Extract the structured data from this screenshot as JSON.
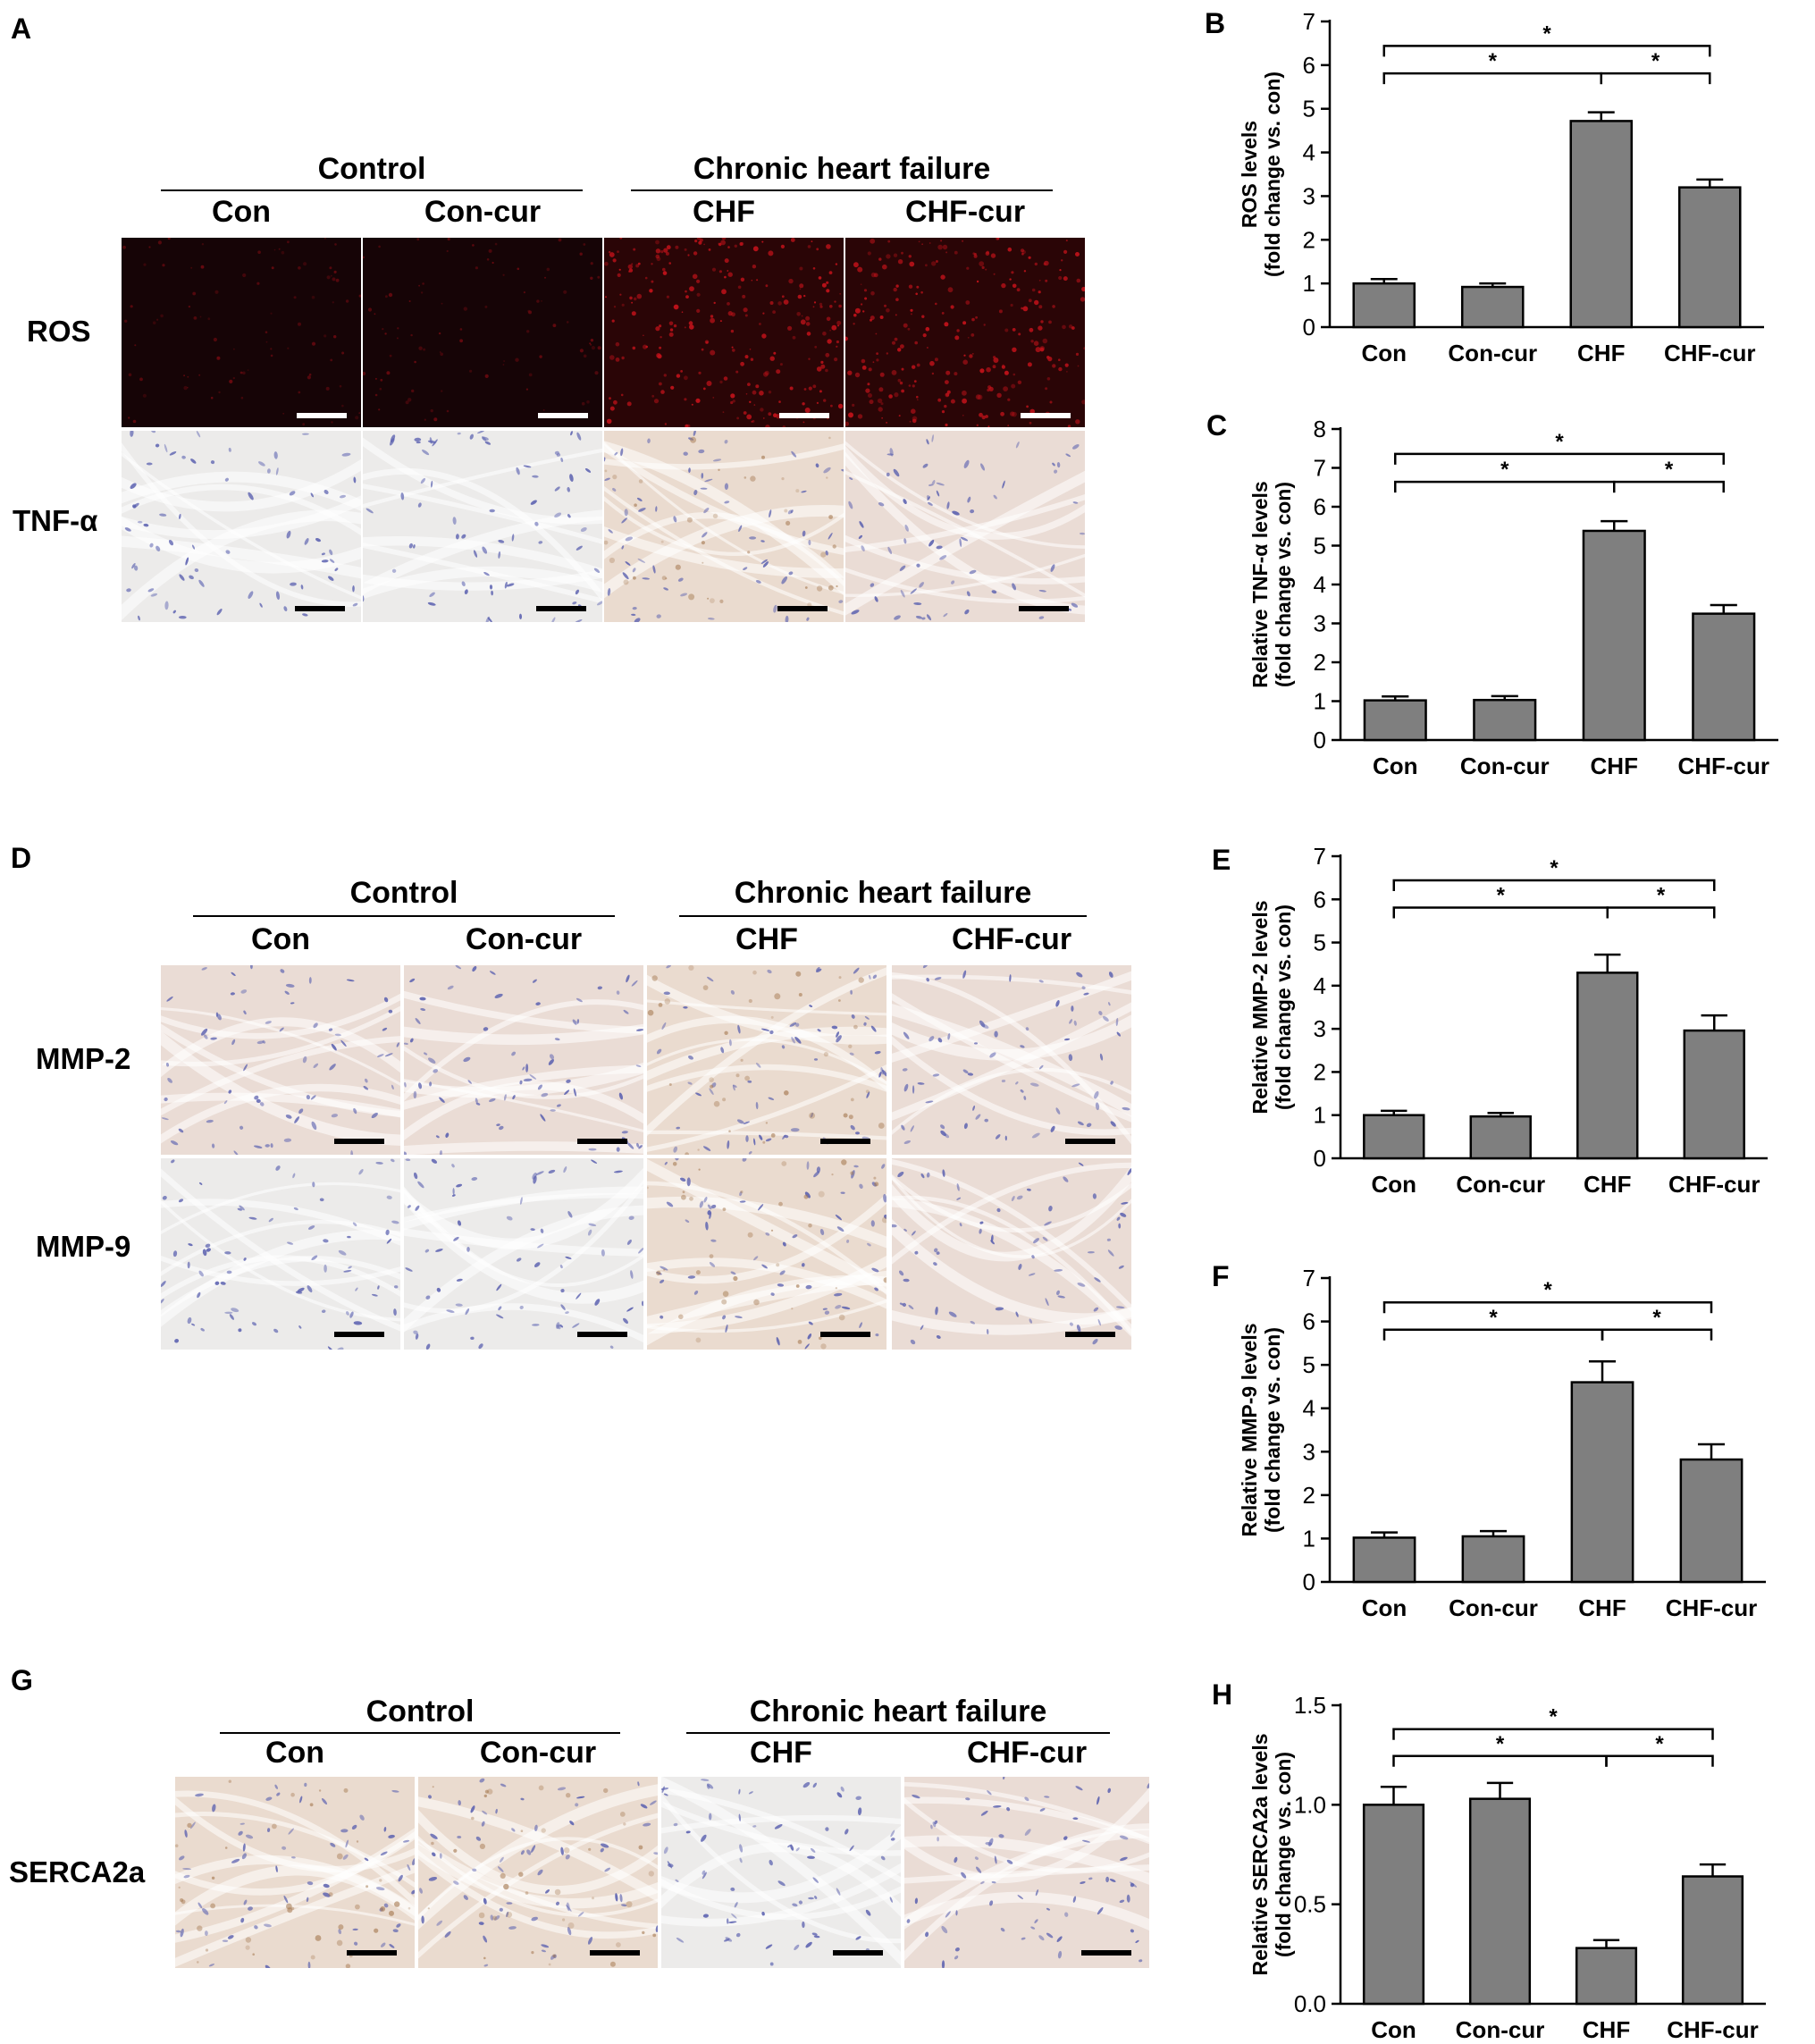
{
  "panels": {
    "A": {
      "label": "A",
      "group_left": "Control",
      "group_right": "Chronic heart failure",
      "columns": [
        "Con",
        "Con-cur",
        "CHF",
        "CHF-cur"
      ],
      "rows": [
        "ROS",
        "TNF-α"
      ]
    },
    "D": {
      "label": "D",
      "group_left": "Control",
      "group_right": "Chronic heart failure",
      "columns": [
        "Con",
        "Con-cur",
        "CHF",
        "CHF-cur"
      ],
      "rows": [
        "MMP-2",
        "MMP-9"
      ]
    },
    "G": {
      "label": "G",
      "group_left": "Control",
      "group_right": "Chronic heart failure",
      "columns": [
        "Con",
        "Con-cur",
        "CHF",
        "CHF-cur"
      ],
      "rows": [
        "SERCA2a"
      ]
    }
  },
  "colors": {
    "bar_fill": "#7f7f7f",
    "ros_background": "#1a0406",
    "ihc_background": "#ebe7e3"
  },
  "chart_data": [
    {
      "panel": "B",
      "type": "bar",
      "categories": [
        "Con",
        "Con-cur",
        "CHF",
        "CHF-cur"
      ],
      "values": [
        1.0,
        0.92,
        4.72,
        3.2
      ],
      "errors": [
        0.1,
        0.08,
        0.2,
        0.18
      ],
      "ylabel": "ROS levels",
      "ylabel2": "(fold change vs. con)",
      "ylim": [
        0,
        7
      ],
      "yticks": [
        0,
        1,
        2,
        3,
        4,
        5,
        6,
        7
      ],
      "ytick_labels": [
        "0",
        "1",
        "2",
        "3",
        "4",
        "5",
        "6",
        "7"
      ],
      "significance": [
        {
          "from": 0,
          "to": 3,
          "label": "*"
        },
        {
          "from": 0,
          "to": 2,
          "label": "*"
        },
        {
          "from": 2,
          "to": 3,
          "label": "*"
        }
      ]
    },
    {
      "panel": "C",
      "type": "bar",
      "categories": [
        "Con",
        "Con-cur",
        "CHF",
        "CHF-cur"
      ],
      "values": [
        1.02,
        1.03,
        5.38,
        3.25
      ],
      "errors": [
        0.1,
        0.1,
        0.25,
        0.22
      ],
      "ylabel": "Relative TNF-α levels",
      "ylabel2": "(fold change vs. con)",
      "ylim": [
        0,
        8
      ],
      "yticks": [
        0,
        1,
        2,
        3,
        4,
        5,
        6,
        7,
        8
      ],
      "ytick_labels": [
        "0",
        "1",
        "2",
        "3",
        "4",
        "5",
        "6",
        "7",
        "8"
      ],
      "significance": [
        {
          "from": 0,
          "to": 3,
          "label": "*"
        },
        {
          "from": 0,
          "to": 2,
          "label": "*"
        },
        {
          "from": 2,
          "to": 3,
          "label": "*"
        }
      ]
    },
    {
      "panel": "E",
      "type": "bar",
      "categories": [
        "Con",
        "Con-cur",
        "CHF",
        "CHF-cur"
      ],
      "values": [
        1.0,
        0.97,
        4.3,
        2.96
      ],
      "errors": [
        0.1,
        0.08,
        0.42,
        0.35
      ],
      "ylabel": "Relative MMP-2 levels",
      "ylabel2": "(fold change vs. con)",
      "ylim": [
        0,
        7
      ],
      "yticks": [
        0,
        1,
        2,
        3,
        4,
        5,
        6,
        7
      ],
      "ytick_labels": [
        "0",
        "1",
        "2",
        "3",
        "4",
        "5",
        "6",
        "7"
      ],
      "significance": [
        {
          "from": 0,
          "to": 3,
          "label": "*"
        },
        {
          "from": 0,
          "to": 2,
          "label": "*"
        },
        {
          "from": 2,
          "to": 3,
          "label": "*"
        }
      ]
    },
    {
      "panel": "F",
      "type": "bar",
      "categories": [
        "Con",
        "Con-cur",
        "CHF",
        "CHF-cur"
      ],
      "values": [
        1.02,
        1.05,
        4.6,
        2.82
      ],
      "errors": [
        0.12,
        0.12,
        0.48,
        0.35
      ],
      "ylabel": "Relative MMP-9 levels",
      "ylabel2": "(fold change vs. con)",
      "ylim": [
        0,
        7
      ],
      "yticks": [
        0,
        1,
        2,
        3,
        4,
        5,
        6,
        7
      ],
      "ytick_labels": [
        "0",
        "1",
        "2",
        "3",
        "4",
        "5",
        "6",
        "7"
      ],
      "significance": [
        {
          "from": 0,
          "to": 3,
          "label": "*"
        },
        {
          "from": 0,
          "to": 2,
          "label": "*"
        },
        {
          "from": 2,
          "to": 3,
          "label": "*"
        }
      ]
    },
    {
      "panel": "H",
      "type": "bar",
      "categories": [
        "Con",
        "Con-cur",
        "CHF",
        "CHF-cur"
      ],
      "values": [
        1.0,
        1.03,
        0.28,
        0.64
      ],
      "errors": [
        0.09,
        0.08,
        0.04,
        0.06
      ],
      "ylabel": "Relative SERCA2a levels",
      "ylabel2": "(fold change vs. con)",
      "ylim": [
        0,
        1.5
      ],
      "yticks": [
        0,
        0.5,
        1.0,
        1.5
      ],
      "ytick_labels": [
        "0.0",
        "0.5",
        "1.0",
        "1.5"
      ],
      "significance": [
        {
          "from": 0,
          "to": 3,
          "label": "*"
        },
        {
          "from": 0,
          "to": 2,
          "label": "*"
        },
        {
          "from": 2,
          "to": 3,
          "label": "*"
        }
      ]
    }
  ]
}
